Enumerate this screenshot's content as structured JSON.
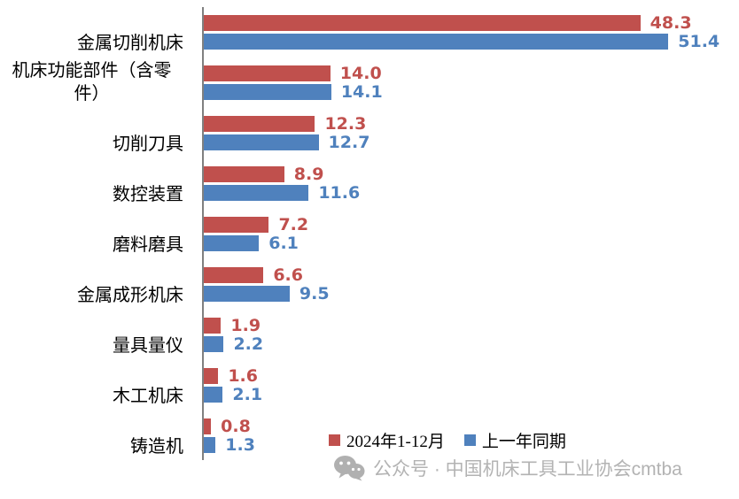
{
  "chart_data": {
    "type": "bar",
    "orientation": "horizontal",
    "title": "",
    "xlabel": "",
    "ylabel": "",
    "value_axis_visible": false,
    "grid": false,
    "legend_position": "bottom-inside",
    "categories": [
      "金属切削机床",
      "机床功能部件（含零件）",
      "切削刀具",
      "数控装置",
      "磨料磨具",
      "金属成形机床",
      "量具量仪",
      "木工机床",
      "铸造机"
    ],
    "series": [
      {
        "name": "2024年1-12月",
        "color": "#C0504D",
        "values": [
          48.3,
          14.0,
          12.3,
          8.9,
          7.2,
          6.6,
          1.9,
          1.6,
          0.8
        ],
        "labels": [
          "48.3",
          "14.0",
          "12.3",
          "8.9",
          "7.2",
          "6.6",
          "1.9",
          "1.6",
          "0.8"
        ]
      },
      {
        "name": "上一年同期",
        "color": "#4F81BD",
        "values": [
          51.4,
          14.1,
          12.7,
          11.6,
          6.1,
          9.5,
          2.2,
          2.1,
          1.3
        ],
        "labels": [
          "51.4",
          "14.1",
          "12.7",
          "11.6",
          "6.1",
          "9.5",
          "2.2",
          "2.1",
          "1.3"
        ]
      }
    ],
    "axis_line_color": "#808080"
  },
  "watermark": {
    "text": "公众号 · 中国机床工具工业协会cmtba",
    "icon": "wechat-icon",
    "color": "#b3b3b3"
  }
}
